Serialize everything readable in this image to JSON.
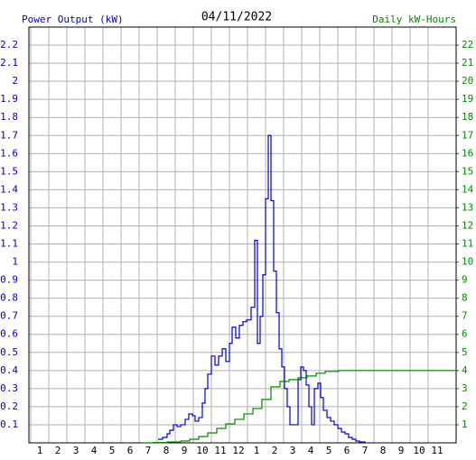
{
  "chart_data": {
    "type": "line",
    "title": "04/11/2022",
    "xlim": [
      0.9,
      24.55
    ],
    "xticks": [
      {
        "value": 1,
        "label": "1"
      },
      {
        "value": 2,
        "label": "2"
      },
      {
        "value": 3,
        "label": "3"
      },
      {
        "value": 4,
        "label": "4"
      },
      {
        "value": 5,
        "label": "5"
      },
      {
        "value": 6,
        "label": "6"
      },
      {
        "value": 7,
        "label": "7"
      },
      {
        "value": 8,
        "label": "8"
      },
      {
        "value": 9,
        "label": "9"
      },
      {
        "value": 10,
        "label": "10"
      },
      {
        "value": 11,
        "label": "11"
      },
      {
        "value": 12,
        "label": "12"
      },
      {
        "value": 13,
        "label": "1"
      },
      {
        "value": 14,
        "label": "2"
      },
      {
        "value": 15,
        "label": "3"
      },
      {
        "value": 16,
        "label": "4"
      },
      {
        "value": 17,
        "label": "5"
      },
      {
        "value": 18,
        "label": "6"
      },
      {
        "value": 19,
        "label": "7"
      },
      {
        "value": 20,
        "label": "8"
      },
      {
        "value": 21,
        "label": "9"
      },
      {
        "value": 22,
        "label": "10"
      },
      {
        "value": 23,
        "label": "11"
      }
    ],
    "ylim": [
      0,
      2.3
    ],
    "yticks": [
      0.1,
      0.2,
      0.3,
      0.4,
      0.5,
      0.6,
      0.7,
      0.8,
      0.9,
      1.0,
      1.1,
      1.2,
      1.3,
      1.4,
      1.5,
      1.6,
      1.7,
      1.8,
      1.9,
      2.0,
      2.1,
      2.2
    ],
    "y2lim": [
      0,
      23
    ],
    "y2ticks": [
      1,
      2,
      3,
      4,
      5,
      6,
      7,
      8,
      9,
      10,
      11,
      12,
      13,
      14,
      15,
      16,
      17,
      18,
      19,
      20,
      21,
      22
    ],
    "grid": true,
    "series": [
      {
        "name": "Power Output (kW)",
        "color": "#0000cc",
        "x": [
          8.05,
          8.3,
          8.55,
          8.7,
          8.9,
          9.1,
          9.3,
          9.55,
          9.75,
          9.95,
          10.1,
          10.3,
          10.5,
          10.65,
          10.8,
          11.0,
          11.2,
          11.4,
          11.6,
          11.8,
          12.0,
          12.15,
          12.35,
          12.55,
          12.75,
          12.95,
          13.2,
          13.4,
          13.55,
          13.7,
          13.85,
          14.0,
          14.15,
          14.3,
          14.45,
          14.6,
          14.75,
          14.9,
          15.05,
          15.2,
          15.35,
          15.6,
          15.8,
          15.95,
          16.1,
          16.25,
          16.4,
          16.55,
          16.7,
          16.9,
          17.05,
          17.2,
          17.4,
          17.6,
          17.8,
          18.0,
          18.2,
          18.4,
          18.6,
          18.8,
          19.0,
          19.2,
          19.5
        ],
        "values": [
          0.02,
          0.03,
          0.05,
          0.07,
          0.1,
          0.09,
          0.1,
          0.13,
          0.16,
          0.15,
          0.12,
          0.14,
          0.22,
          0.3,
          0.38,
          0.48,
          0.43,
          0.48,
          0.52,
          0.45,
          0.55,
          0.64,
          0.58,
          0.65,
          0.67,
          0.68,
          0.75,
          1.12,
          0.55,
          0.7,
          0.93,
          1.35,
          1.7,
          1.34,
          0.95,
          0.72,
          0.52,
          0.42,
          0.3,
          0.2,
          0.1,
          0.1,
          0.35,
          0.42,
          0.4,
          0.32,
          0.2,
          0.1,
          0.3,
          0.33,
          0.25,
          0.18,
          0.14,
          0.12,
          0.1,
          0.08,
          0.06,
          0.05,
          0.03,
          0.02,
          0.01,
          0.005,
          0
        ]
      },
      {
        "name": "Daily kW-Hours",
        "color": "#008800",
        "axis": "y2",
        "x": [
          7.2,
          7.8,
          8.55,
          9.3,
          9.8,
          10.3,
          10.8,
          11.3,
          11.8,
          12.3,
          12.8,
          13.3,
          13.8,
          14.3,
          14.8,
          15.3,
          15.8,
          16.3,
          16.8,
          17.3,
          18.05,
          24.5
        ],
        "values": [
          0,
          0.02,
          0.05,
          0.1,
          0.2,
          0.35,
          0.55,
          0.8,
          1.05,
          1.3,
          1.6,
          1.9,
          2.4,
          3.1,
          3.4,
          3.5,
          3.6,
          3.7,
          3.85,
          3.95,
          4.0,
          4.0
        ]
      }
    ]
  }
}
